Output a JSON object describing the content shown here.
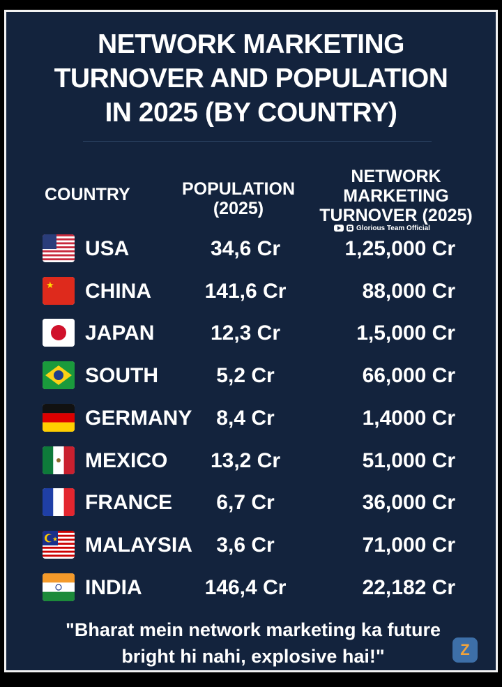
{
  "title": {
    "line1": "NETWORK MARKETING",
    "line2": "TURNOVER AND POPULATION",
    "line3": "IN 2025 (BY COUNTRY)"
  },
  "headers": {
    "country": "COUNTRY",
    "population": [
      "POPULATION",
      "(2025)"
    ],
    "turnover": [
      "NETWORK",
      "MARKETING",
      "TURNOVER (2025)"
    ]
  },
  "social": {
    "label": "Glorious Team Official"
  },
  "chart_data": {
    "type": "table",
    "columns": [
      "COUNTRY",
      "POPULATION (2025)",
      "NETWORK MARKETING TURNOVER (2025)"
    ],
    "rows": [
      {
        "country": "USA",
        "population": "34,6 Cr",
        "turnover": "1,25,000 Cr"
      },
      {
        "country": "CHINA",
        "population": "141,6 Cr",
        "turnover": "88,000 Cr"
      },
      {
        "country": "JAPAN",
        "population": "12,3 Cr",
        "turnover": "1,5,000 Cr"
      },
      {
        "country": "SOUTH",
        "population": "5,2 Cr",
        "turnover": "66,000 Cr"
      },
      {
        "country": "GERMANY",
        "population": "8,4 Cr",
        "turnover": "1,4000 Cr"
      },
      {
        "country": "MEXICO",
        "population": "13,2 Cr",
        "turnover": "51,000 Cr"
      },
      {
        "country": "FRANCE",
        "population": "6,7 Cr",
        "turnover": "36,000 Cr"
      },
      {
        "country": "MALAYSIA",
        "population": "3,6 Cr",
        "turnover": "71,000 Cr"
      },
      {
        "country": "INDIA",
        "population": "146,4 Cr",
        "turnover": "22,182 Cr"
      }
    ]
  },
  "flags": [
    "usa-flag-icon",
    "china-flag-icon",
    "japan-flag-icon",
    "brazil-flag-icon",
    "germany-flag-icon",
    "mexico-flag-icon",
    "france-flag-icon",
    "malaysia-flag-icon",
    "india-flag-icon"
  ],
  "quote": {
    "line1": "\"Bharat mein network marketing ka future",
    "line2": "bright hi nahi, explosive hai!\""
  },
  "badge": "Z",
  "colors": {
    "background": "#13233d",
    "text": "#ffffff"
  }
}
